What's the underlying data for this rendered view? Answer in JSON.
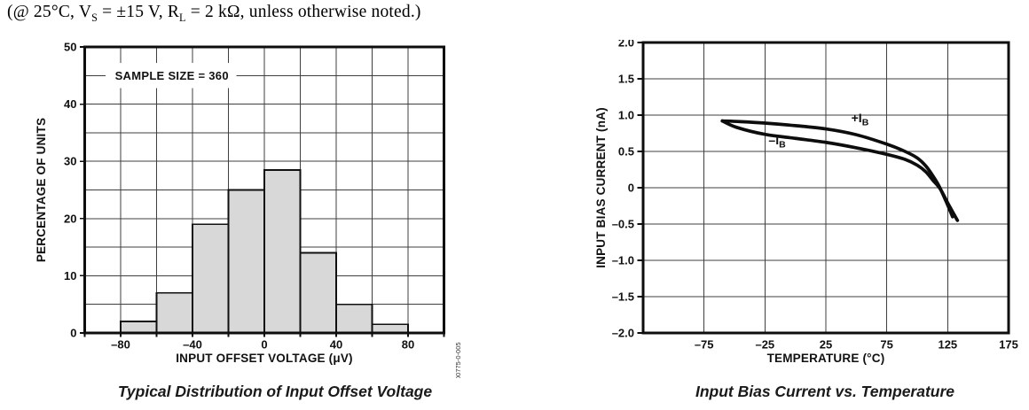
{
  "header": {
    "plain": "(@ 25°C, VS = ±15 V, RL = 2 kΩ, unless otherwise noted.)",
    "segments": [
      {
        "text": "(@ 25°C, V"
      },
      {
        "text": "S",
        "sub": true
      },
      {
        "text": " = ±15 V, R"
      },
      {
        "text": "L",
        "sub": true
      },
      {
        "text": " = 2 kΩ, unless otherwise noted.)"
      }
    ]
  },
  "chart_data": [
    {
      "type": "bar",
      "subtype": "histogram",
      "caption": "Typical Distribution of Input Offset Voltage",
      "annotation": {
        "text": "SAMPLE SIZE = 360",
        "y_value": 45
      },
      "xlabel": "INPUT OFFSET VOLTAGE (μV)",
      "ylabel": "PERCENTAGE OF UNITS",
      "figure_code": "00775-0-005",
      "xlim": [
        -100,
        100
      ],
      "ylim": [
        0,
        50
      ],
      "x_grid_step": 20,
      "y_grid_step": 5,
      "grid": true,
      "bin_start": -100,
      "bin_width": 20,
      "categories": [
        "-100 to -80",
        "-80 to -60",
        "-60 to -40",
        "-40 to -20",
        "-20 to 0",
        "0 to 20",
        "20 to 40",
        "40 to 60",
        "60 to 80",
        "80 to 100"
      ],
      "values": [
        0,
        2,
        7,
        19,
        25,
        28.5,
        14,
        5,
        1.5,
        0
      ],
      "bar_fill": "#d8d8d8",
      "bar_stroke": "#101010",
      "x_ticks": [
        {
          "v": -80,
          "label": "–80"
        },
        {
          "v": -40,
          "label": "–40"
        },
        {
          "v": 0,
          "label": "0"
        },
        {
          "v": 40,
          "label": "40"
        },
        {
          "v": 80,
          "label": "80"
        }
      ],
      "y_ticks": [
        {
          "v": 50,
          "label": "50"
        },
        {
          "v": 40,
          "label": "40"
        },
        {
          "v": 30,
          "label": "30"
        },
        {
          "v": 20,
          "label": "20"
        },
        {
          "v": 10,
          "label": "10"
        },
        {
          "v": 0,
          "label": "0"
        }
      ]
    },
    {
      "type": "line",
      "caption": "Input Bias Current vs. Temperature",
      "xlabel": "TEMPERATURE (°C)",
      "ylabel": "INPUT BIAS CURRENT (nA)",
      "xlim": [
        -125,
        175
      ],
      "ylim": [
        -2.0,
        2.0
      ],
      "x_gridlines": [
        -75,
        -25,
        25,
        75,
        125,
        175
      ],
      "y_grid_step": 0.5,
      "grid": true,
      "line_color": "#0d0d0d",
      "x_ticks": [
        {
          "v": -75,
          "label": "–75"
        },
        {
          "v": -25,
          "label": "–25"
        },
        {
          "v": 25,
          "label": "25"
        },
        {
          "v": 75,
          "label": "75"
        },
        {
          "v": 125,
          "label": "125"
        },
        {
          "v": 175,
          "label": "175"
        }
      ],
      "y_ticks": [
        {
          "v": 2.0,
          "label": "2.0"
        },
        {
          "v": 1.5,
          "label": "1.5"
        },
        {
          "v": 1.0,
          "label": "1.0"
        },
        {
          "v": 0.5,
          "label": "0.5"
        },
        {
          "v": 0,
          "label": "0"
        },
        {
          "v": -0.5,
          "label": "–0.5"
        },
        {
          "v": -1.0,
          "label": "–1.0"
        },
        {
          "v": -1.5,
          "label": "–1.5"
        },
        {
          "v": -2.0,
          "label": "–2.0"
        }
      ],
      "series": [
        {
          "name": "+IB",
          "label_main": "+I",
          "label_sub": "B",
          "label_pos": {
            "x": 53,
            "y": 0.9
          },
          "points": [
            [
              -60,
              0.92
            ],
            [
              -45,
              0.91
            ],
            [
              -25,
              0.89
            ],
            [
              0,
              0.855
            ],
            [
              25,
              0.81
            ],
            [
              50,
              0.73
            ],
            [
              75,
              0.6
            ],
            [
              90,
              0.5
            ],
            [
              100,
              0.41
            ],
            [
              107,
              0.3
            ],
            [
              113,
              0.16
            ],
            [
              118,
              0.02
            ],
            [
              124,
              -0.2
            ],
            [
              129,
              -0.4
            ]
          ]
        },
        {
          "name": "-IB",
          "label_main": "–I",
          "label_sub": "B",
          "label_pos": {
            "x": -15,
            "y": 0.6
          },
          "points": [
            [
              -60,
              0.92
            ],
            [
              -48,
              0.83
            ],
            [
              -25,
              0.735
            ],
            [
              0,
              0.68
            ],
            [
              25,
              0.625
            ],
            [
              50,
              0.55
            ],
            [
              75,
              0.46
            ],
            [
              90,
              0.39
            ],
            [
              100,
              0.31
            ],
            [
              107,
              0.22
            ],
            [
              113,
              0.1
            ],
            [
              119,
              -0.02
            ],
            [
              126,
              -0.24
            ],
            [
              133,
              -0.45
            ]
          ]
        }
      ]
    }
  ]
}
